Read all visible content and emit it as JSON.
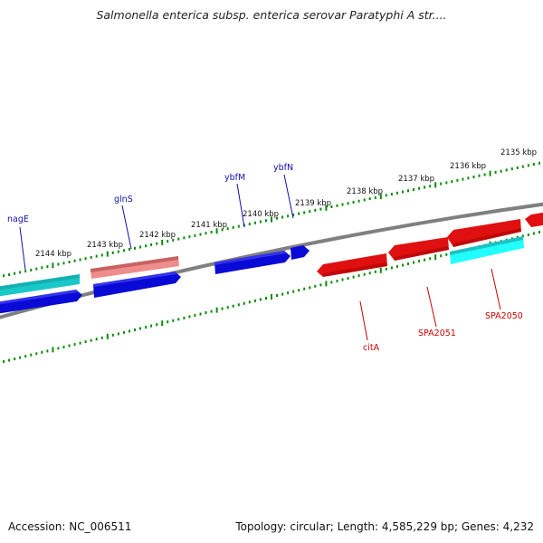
{
  "title": "Salmonella enterica subsp. enterica serovar Paratyphi A str....",
  "footer": {
    "accession": "Accession: NC_006511",
    "topology": "Topology: circular; Length: 4,585,229 bp; Genes: 4,232"
  },
  "colors": {
    "forward_gene": "#0a0ad6",
    "reverse_gene": "#e01010",
    "forward_cds_light": "#19c8c8",
    "reverse_cds_light": "#d05a5a",
    "backbone": "#808080",
    "tick": "#0a8a0a",
    "forward_label": "#1010aa",
    "reverse_label": "#cc0000"
  },
  "ticks": {
    "labels": [
      "2135 kbp",
      "2136 kbp",
      "2137 kbp",
      "2138 kbp",
      "2139 kbp",
      "2140 kbp",
      "2141 kbp",
      "2142 kbp",
      "2143 kbp",
      "2144 kbp"
    ]
  },
  "genes": {
    "forward": [
      "nagE",
      "glnS",
      "ybfM",
      "ybfN"
    ],
    "reverse": [
      "citA",
      "SPA2051",
      "SPA2050"
    ]
  }
}
